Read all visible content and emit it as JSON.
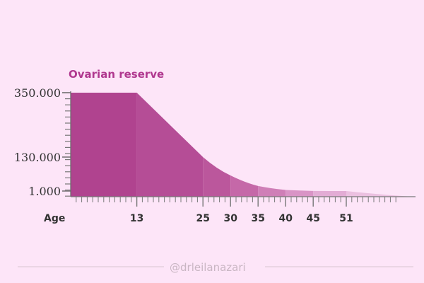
{
  "chart_data": {
    "type": "area",
    "title": "Ovarian reserve",
    "xlabel": "Age",
    "ylabel": "",
    "x_ticks": [
      13,
      25,
      30,
      35,
      40,
      45,
      51
    ],
    "x_tick_labels": [
      "13",
      "25",
      "30",
      "35",
      "40",
      "45",
      "51"
    ],
    "y_ticks": [
      350000,
      130000,
      1000
    ],
    "y_tick_labels": [
      "350.000",
      "130.000",
      "1.000"
    ],
    "xlim": [
      1,
      63
    ],
    "points": [
      {
        "x": 1,
        "y": 350000
      },
      {
        "x": 13,
        "y": 350000
      },
      {
        "x": 25,
        "y": 130000
      },
      {
        "x": 30,
        "y": 60000
      },
      {
        "x": 35,
        "y": 20000
      },
      {
        "x": 40,
        "y": 5000
      },
      {
        "x": 45,
        "y": 1500
      },
      {
        "x": 51,
        "y": 1000
      },
      {
        "x": 63,
        "y": 0
      }
    ],
    "segment_colors": [
      "#b0438f",
      "#b54d96",
      "#bb579c",
      "#c568a8",
      "#cf7fb7",
      "#d994c6",
      "#e3acd5",
      "#ebc0e0"
    ],
    "grid": false
  },
  "watermark": "@drleilanazari"
}
